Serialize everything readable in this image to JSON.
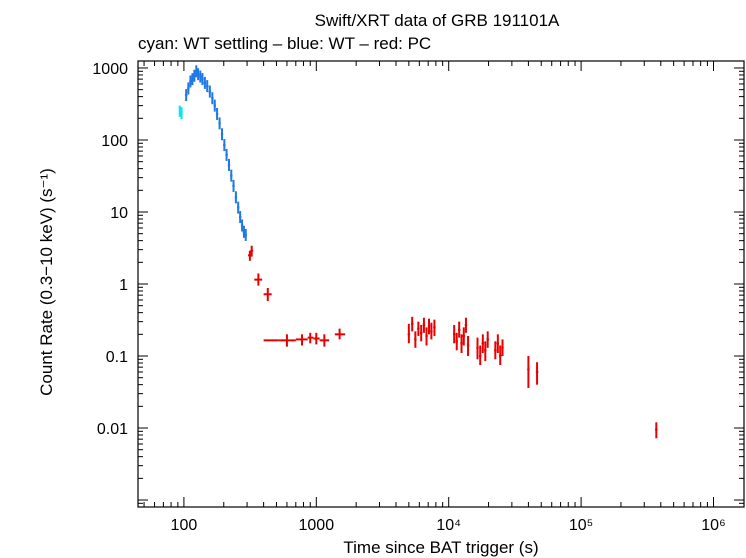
{
  "chart_data": {
    "type": "scatter",
    "title": "Swift/XRT data of GRB 191101A",
    "subtitle": "cyan: WT settling – blue: WT – red: PC",
    "xlabel": "Time since BAT trigger (s)",
    "ylabel": "Count Rate (0.3−10 keV) (s⁻¹)",
    "xscale": "log",
    "yscale": "log",
    "xlim": [
      45,
      1700000
    ],
    "ylim": [
      0.0008,
      1250
    ],
    "x_ticks": [
      {
        "value": 100,
        "label": "100"
      },
      {
        "value": 1000,
        "label": "1000"
      },
      {
        "value": 10000,
        "label": "10⁴"
      },
      {
        "value": 100000,
        "label": "10⁵"
      },
      {
        "value": 1000000,
        "label": "10⁶"
      }
    ],
    "y_ticks": [
      {
        "value": 1000,
        "label": "1000"
      },
      {
        "value": 100,
        "label": "100"
      },
      {
        "value": 10,
        "label": "10"
      },
      {
        "value": 1,
        "label": "1"
      },
      {
        "value": 0.1,
        "label": "0.1"
      },
      {
        "value": 0.01,
        "label": "0.01"
      }
    ],
    "series": [
      {
        "name": "WT settling",
        "color": "#00e5ee",
        "points": [
          {
            "x": 93,
            "y": 250,
            "xlo": 92,
            "xhi": 94,
            "ylo": 210,
            "yhi": 300
          },
          {
            "x": 96,
            "y": 235,
            "xlo": 95,
            "xhi": 97,
            "ylo": 195,
            "yhi": 285
          }
        ]
      },
      {
        "name": "WT",
        "color": "#1e78e6",
        "points": [
          {
            "x": 104,
            "y": 420
          },
          {
            "x": 108,
            "y": 520
          },
          {
            "x": 112,
            "y": 650
          },
          {
            "x": 116,
            "y": 700
          },
          {
            "x": 120,
            "y": 780
          },
          {
            "x": 124,
            "y": 900
          },
          {
            "x": 128,
            "y": 820
          },
          {
            "x": 133,
            "y": 760
          },
          {
            "x": 138,
            "y": 700
          },
          {
            "x": 144,
            "y": 620
          },
          {
            "x": 150,
            "y": 560
          },
          {
            "x": 157,
            "y": 470
          },
          {
            "x": 164,
            "y": 380
          },
          {
            "x": 171,
            "y": 300
          },
          {
            "x": 178,
            "y": 230
          },
          {
            "x": 186,
            "y": 170
          },
          {
            "x": 194,
            "y": 120
          },
          {
            "x": 202,
            "y": 85
          },
          {
            "x": 210,
            "y": 62
          },
          {
            "x": 219,
            "y": 45
          },
          {
            "x": 228,
            "y": 32
          },
          {
            "x": 237,
            "y": 23
          },
          {
            "x": 247,
            "y": 16
          },
          {
            "x": 257,
            "y": 11.5
          },
          {
            "x": 266,
            "y": 8.5
          },
          {
            "x": 275,
            "y": 6.5
          },
          {
            "x": 284,
            "y": 5.3
          },
          {
            "x": 293,
            "y": 4.8
          }
        ]
      },
      {
        "name": "PC",
        "color": "#e60000",
        "points": [
          {
            "x": 315,
            "y": 2.5,
            "xlo": 305,
            "xhi": 325,
            "ylo": 2.1,
            "yhi": 2.9
          },
          {
            "x": 325,
            "y": 2.9,
            "xlo": 318,
            "xhi": 333,
            "ylo": 2.4,
            "yhi": 3.4
          },
          {
            "x": 365,
            "y": 1.15,
            "xlo": 340,
            "xhi": 390,
            "ylo": 0.95,
            "yhi": 1.4
          },
          {
            "x": 430,
            "y": 0.72,
            "xlo": 400,
            "xhi": 460,
            "ylo": 0.58,
            "yhi": 0.88
          },
          {
            "x": 440,
            "y": 0.165,
            "xlo": 400,
            "xhi": 520,
            "ylo": 0.165,
            "yhi": 0.165
          },
          {
            "x": 600,
            "y": 0.165,
            "xlo": 520,
            "xhi": 700,
            "ylo": 0.135,
            "yhi": 0.2
          },
          {
            "x": 780,
            "y": 0.17,
            "xlo": 700,
            "xhi": 860,
            "ylo": 0.14,
            "yhi": 0.2
          },
          {
            "x": 900,
            "y": 0.18,
            "xlo": 860,
            "xhi": 950,
            "ylo": 0.15,
            "yhi": 0.21
          },
          {
            "x": 1000,
            "y": 0.175,
            "xlo": 950,
            "xhi": 1060,
            "ylo": 0.145,
            "yhi": 0.21
          },
          {
            "x": 1150,
            "y": 0.165,
            "xlo": 1060,
            "xhi": 1250,
            "ylo": 0.135,
            "yhi": 0.2
          },
          {
            "x": 1500,
            "y": 0.2,
            "xlo": 1380,
            "xhi": 1650,
            "ylo": 0.17,
            "yhi": 0.24
          },
          {
            "x": 5000,
            "y": 0.2,
            "ylo": 0.15,
            "yhi": 0.28
          },
          {
            "x": 5300,
            "y": 0.28,
            "ylo": 0.22,
            "yhi": 0.35
          },
          {
            "x": 5600,
            "y": 0.17,
            "ylo": 0.13,
            "yhi": 0.22
          },
          {
            "x": 5900,
            "y": 0.24,
            "ylo": 0.19,
            "yhi": 0.3
          },
          {
            "x": 6200,
            "y": 0.21,
            "ylo": 0.16,
            "yhi": 0.27
          },
          {
            "x": 6500,
            "y": 0.27,
            "ylo": 0.21,
            "yhi": 0.34
          },
          {
            "x": 6800,
            "y": 0.19,
            "ylo": 0.14,
            "yhi": 0.25
          },
          {
            "x": 7100,
            "y": 0.26,
            "ylo": 0.2,
            "yhi": 0.33
          },
          {
            "x": 7400,
            "y": 0.22,
            "ylo": 0.17,
            "yhi": 0.29
          },
          {
            "x": 7800,
            "y": 0.25,
            "ylo": 0.19,
            "yhi": 0.32
          },
          {
            "x": 11000,
            "y": 0.2,
            "ylo": 0.15,
            "yhi": 0.27
          },
          {
            "x": 11500,
            "y": 0.16,
            "ylo": 0.12,
            "yhi": 0.21
          },
          {
            "x": 12000,
            "y": 0.23,
            "ylo": 0.18,
            "yhi": 0.3
          },
          {
            "x": 12500,
            "y": 0.15,
            "ylo": 0.11,
            "yhi": 0.2
          },
          {
            "x": 13000,
            "y": 0.19,
            "ylo": 0.14,
            "yhi": 0.25
          },
          {
            "x": 13500,
            "y": 0.27,
            "ylo": 0.21,
            "yhi": 0.34
          },
          {
            "x": 14000,
            "y": 0.14,
            "ylo": 0.1,
            "yhi": 0.19
          },
          {
            "x": 16500,
            "y": 0.13,
            "ylo": 0.09,
            "yhi": 0.18
          },
          {
            "x": 17300,
            "y": 0.1,
            "ylo": 0.075,
            "yhi": 0.14
          },
          {
            "x": 18100,
            "y": 0.15,
            "ylo": 0.11,
            "yhi": 0.2
          },
          {
            "x": 18900,
            "y": 0.12,
            "ylo": 0.085,
            "yhi": 0.16
          },
          {
            "x": 19700,
            "y": 0.17,
            "ylo": 0.13,
            "yhi": 0.22
          },
          {
            "x": 22500,
            "y": 0.12,
            "ylo": 0.09,
            "yhi": 0.16
          },
          {
            "x": 23500,
            "y": 0.15,
            "ylo": 0.11,
            "yhi": 0.2
          },
          {
            "x": 24500,
            "y": 0.1,
            "ylo": 0.075,
            "yhi": 0.14
          },
          {
            "x": 25500,
            "y": 0.13,
            "ylo": 0.1,
            "yhi": 0.17
          },
          {
            "x": 40000,
            "y": 0.065,
            "ylo": 0.036,
            "yhi": 0.1
          },
          {
            "x": 46500,
            "y": 0.06,
            "ylo": 0.04,
            "yhi": 0.082
          },
          {
            "x": 370000,
            "y": 0.0095,
            "ylo": 0.0072,
            "yhi": 0.012
          }
        ]
      }
    ]
  }
}
